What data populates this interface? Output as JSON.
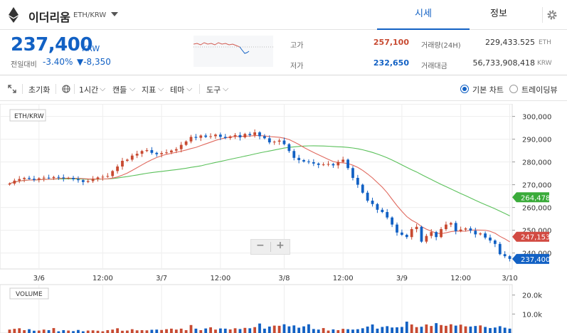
{
  "header": {
    "coin_name": "이더리움",
    "coin_pair": "ETH/KRW",
    "tabs": [
      {
        "label": "시세",
        "active": true
      },
      {
        "label": "정보",
        "active": false
      }
    ],
    "icons": [
      "ethereum-icon",
      "chevron-down-icon",
      "gear-icon"
    ]
  },
  "ticker": {
    "price": "237,400",
    "price_unit": "KRW",
    "change_label": "전일대비",
    "change_rate": "-3.40%",
    "change_amount": "▼-8,350",
    "high_label": "고가",
    "high": "257,100",
    "low_label": "저가",
    "low": "232,650",
    "volume_label": "거래량(24H)",
    "volume": "229,433.525",
    "volume_unit": "ETH",
    "value_label": "거래대금",
    "value": "56,733,908,418",
    "value_unit": "KRW",
    "colors": {
      "up": "#c84a31",
      "down": "#1261c4"
    }
  },
  "toolbar": {
    "reset": "초기화",
    "interval": "1시간",
    "candle": "캔들",
    "indicator": "지표",
    "theme": "테마",
    "tools": "도구",
    "mode_basic": "기본 차트",
    "mode_tradingview": "트레이딩뷰"
  },
  "chart_data": {
    "type": "candlestick",
    "symbol_label": "ETH/KRW",
    "volume_label": "VOLUME",
    "y_ticks": [
      "300,000",
      "290,000",
      "280,000",
      "270,000",
      "260,000",
      "250,000",
      "240,000"
    ],
    "ylim": [
      233000,
      303000
    ],
    "x_ticks": [
      "3/6",
      "12:00",
      "3/7",
      "12:00",
      "3/8",
      "12:00",
      "3/9",
      "12:00",
      "3/10"
    ],
    "volume_ticks": [
      "20.0k",
      "10.0k"
    ],
    "price_tags": [
      {
        "label": "264,478",
        "value": 264478,
        "color": "#3aab3a"
      },
      {
        "label": "247,153",
        "value": 247153,
        "color": "#d24a42"
      },
      {
        "label": "237,400",
        "value": 237400,
        "color": "#1261c4"
      }
    ],
    "ma_short_color": "#e06a5f",
    "ma_long_color": "#5bc15b",
    "up_color": "#c84a31",
    "down_color": "#1261c4",
    "closes": [
      270500,
      271800,
      272500,
      273000,
      272600,
      272100,
      272800,
      273100,
      272900,
      273400,
      273200,
      272800,
      273000,
      272400,
      272000,
      271200,
      271600,
      272500,
      273200,
      273500,
      273800,
      276000,
      278000,
      280500,
      281000,
      282800,
      283600,
      284800,
      285200,
      284000,
      283400,
      283900,
      284200,
      285000,
      285600,
      287500,
      289000,
      291000,
      290600,
      291600,
      291000,
      291300,
      292000,
      291000,
      290500,
      291200,
      291800,
      290800,
      292300,
      291800,
      293000,
      291300,
      290400,
      288600,
      288900,
      289400,
      287800,
      284800,
      281800,
      280800,
      280200,
      279900,
      279300,
      278700,
      278900,
      279100,
      278500,
      280000,
      281000,
      277300,
      273000,
      270000,
      266500,
      263000,
      261500,
      259000,
      258000,
      255600,
      252500,
      249000,
      248000,
      247000,
      250500,
      251500,
      245000,
      247500,
      249200,
      247000,
      250500,
      252500,
      253200,
      249600,
      250300,
      250800,
      249800,
      248200,
      248600,
      246800,
      245500,
      244000,
      239500,
      238600,
      237400
    ],
    "volumes": [
      1800,
      2200,
      2500,
      1500,
      2000,
      1200,
      1300,
      1800,
      1500,
      2600,
      900,
      1500,
      1300,
      1000,
      1600,
      900,
      1300,
      1400,
      1200,
      900,
      1500,
      1800,
      2500,
      1200,
      1300,
      2000,
      1400,
      1500,
      1400,
      1700,
      1800,
      1600,
      2000,
      2300,
      1800,
      2300,
      1500,
      4200,
      2300,
      1500,
      2400,
      3000,
      1800,
      2400,
      2300,
      1900,
      2500,
      2100,
      2700,
      2500,
      3100,
      5000,
      2300,
      3400,
      3900,
      3800,
      4600,
      3500,
      4000,
      2800,
      3500,
      4600,
      2100,
      1800,
      2600,
      1300,
      1900,
      1500,
      2200,
      2000,
      1800,
      2000,
      2500,
      3400,
      4500,
      2300,
      3200,
      3600,
      2900,
      3000,
      3200,
      6000,
      4500,
      3100,
      3300,
      4500,
      3700,
      5200,
      4200,
      3800,
      4600,
      3900,
      4400,
      3500,
      3400,
      3700,
      4000,
      3200,
      2600,
      2900,
      3600,
      2800,
      2300
    ]
  }
}
